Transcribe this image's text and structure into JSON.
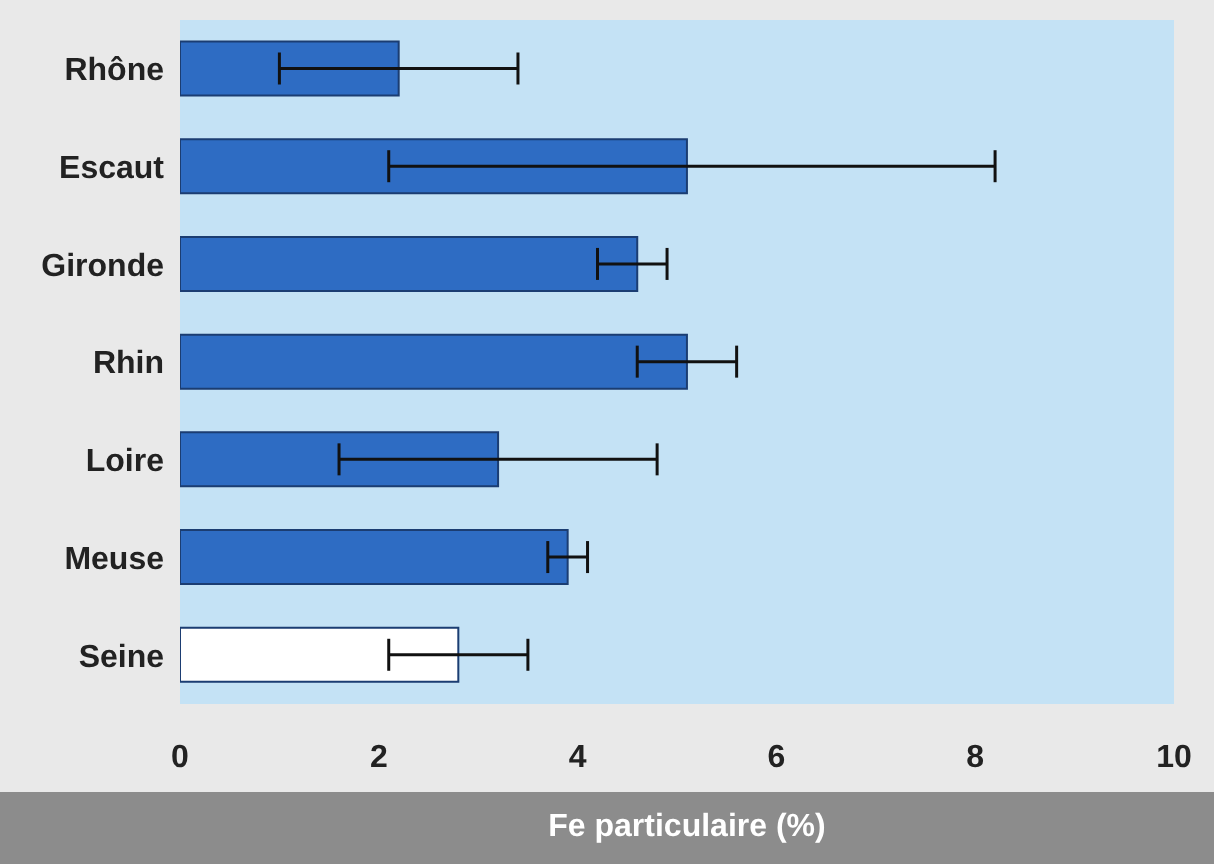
{
  "chart_data": {
    "type": "bar",
    "orientation": "horizontal",
    "xlabel": "Fe particulaire (%)",
    "categories": [
      "Rhône",
      "Escaut",
      "Gironde",
      "Rhin",
      "Loire",
      "Meuse",
      "Seine"
    ],
    "values": [
      2.2,
      5.1,
      4.6,
      5.1,
      3.2,
      3.9,
      2.8
    ],
    "colors": [
      "#2e6cc3",
      "#2e6cc3",
      "#2e6cc3",
      "#2e6cc3",
      "#2e6cc3",
      "#2e6cc3",
      "#ffffff"
    ],
    "errors": [
      [
        1.0,
        3.4
      ],
      [
        2.1,
        8.2
      ],
      [
        4.2,
        4.9
      ],
      [
        4.6,
        5.6
      ],
      [
        1.6,
        4.8
      ],
      [
        3.7,
        4.1
      ],
      [
        2.1,
        3.5
      ]
    ],
    "xlim": [
      0,
      10
    ],
    "xticks": [
      0,
      2,
      4,
      6,
      8,
      10
    ],
    "grid": false,
    "legend": false
  }
}
